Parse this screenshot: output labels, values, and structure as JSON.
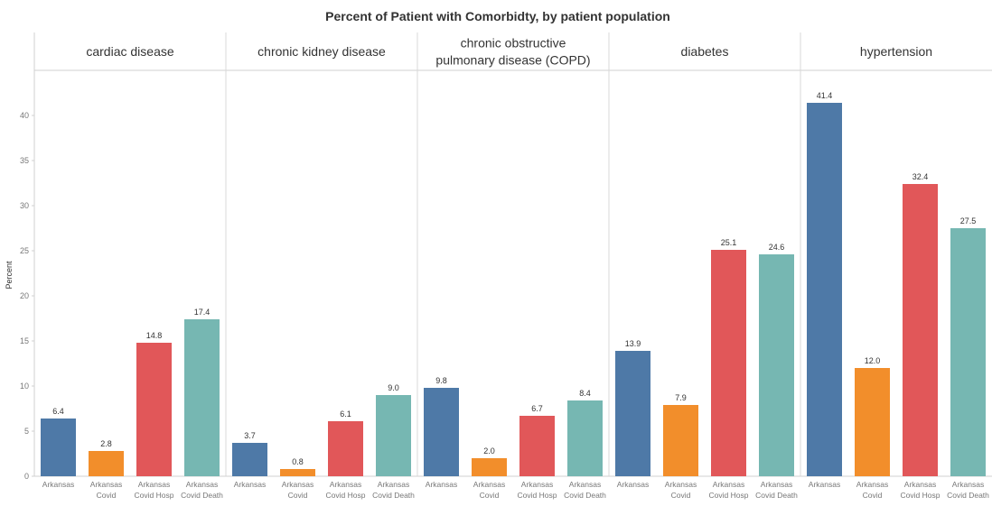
{
  "chart_data": {
    "type": "bar",
    "title": "Percent of Patient with Comorbidty, by patient population",
    "ylabel": "Percent",
    "xlabel": "",
    "ylim": [
      0,
      44
    ],
    "yticks": [
      0,
      5,
      10,
      15,
      20,
      25,
      30,
      35,
      40
    ],
    "grid": false,
    "legend": "none",
    "categories": [
      [
        "Arkansas"
      ],
      [
        "Arkansas",
        "Covid"
      ],
      [
        "Arkansas",
        "Covid Hosp"
      ],
      [
        "Arkansas",
        "Covid Death"
      ]
    ],
    "colors": [
      "#4e79a7",
      "#f28e2b",
      "#e15759",
      "#76b7b2"
    ],
    "panels": [
      {
        "title_lines": [
          "cardiac disease"
        ],
        "values": [
          6.4,
          2.8,
          14.8,
          17.4
        ]
      },
      {
        "title_lines": [
          "chronic kidney disease"
        ],
        "values": [
          3.7,
          0.8,
          6.1,
          9.0
        ]
      },
      {
        "title_lines": [
          "chronic obstructive",
          "pulmonary disease (COPD)"
        ],
        "values": [
          9.8,
          2.0,
          6.7,
          8.4
        ]
      },
      {
        "title_lines": [
          "diabetes"
        ],
        "values": [
          13.9,
          7.9,
          25.1,
          24.6
        ]
      },
      {
        "title_lines": [
          "hypertension"
        ],
        "values": [
          41.4,
          12.0,
          32.4,
          27.5
        ]
      }
    ]
  }
}
